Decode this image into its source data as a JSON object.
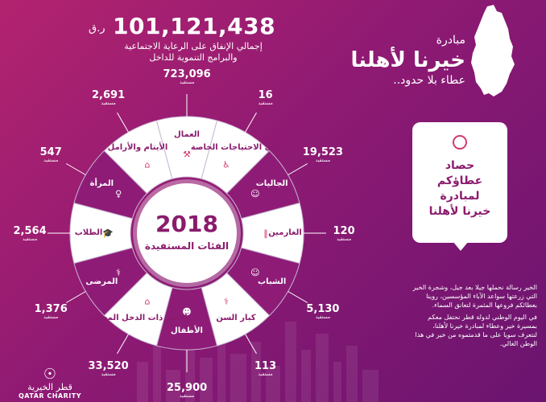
{
  "initiative": {
    "prefix": "مبادرة",
    "name": "خيرنا لأهلنا",
    "slogan": "عطاء بلا حدود.."
  },
  "total": {
    "value": "101,121,438",
    "currency": "ر.ق",
    "description_line1": "إجمالي الإنفاق على الرعاية الاجتماعية",
    "description_line2": "والبرامج التنموية للداخل"
  },
  "center": {
    "year": "2018",
    "label": "الفئات المستفيدة"
  },
  "unit_label": "مستفيد",
  "categories": [
    {
      "label": "الطلاب",
      "value": "2,564",
      "fill": "#ffffff",
      "text": "dark",
      "icon": "graduation-cap-icon"
    },
    {
      "label": "المرأة",
      "value": "547",
      "fill": "#8e1c77",
      "text": "light",
      "icon": "woman-icon"
    },
    {
      "label": "الأيتام والأرامل",
      "value": "2,691",
      "fill": "#ffffff",
      "text": "dark",
      "icon": "family-icon"
    },
    {
      "label": "العمال",
      "value": "723,096",
      "fill": "#ffffff",
      "text": "dark",
      "icon": "worker-icon"
    },
    {
      "label": "ذوي الاحتياجات الخاصة",
      "value": "16",
      "fill": "#ffffff",
      "text": "dark",
      "icon": "wheelchair-icon"
    },
    {
      "label": "الجاليات",
      "value": "19,523",
      "fill": "#8e1c77",
      "text": "light",
      "icon": "people-icon"
    },
    {
      "label": "الغارمين",
      "value": "120",
      "fill": "#ffffff",
      "text": "dark",
      "icon": "prison-bars-icon"
    },
    {
      "label": "الشباب",
      "value": "5,130",
      "fill": "#8e1c77",
      "text": "light",
      "icon": "youth-icon"
    },
    {
      "label": "كبار السن",
      "value": "113",
      "fill": "#ffffff",
      "text": "dark",
      "icon": "elderly-icon"
    },
    {
      "label": "الأطفال",
      "value": "25,900",
      "fill": "#8e1c77",
      "text": "light",
      "icon": "children-icon"
    },
    {
      "label": "الأسر ذات الدخل المحدود",
      "value": "33,520",
      "fill": "#ffffff",
      "text": "dark",
      "icon": "family-icon"
    },
    {
      "label": "المرضى",
      "value": "1,376",
      "fill": "#8e1c77",
      "text": "light",
      "icon": "hospital-bed-icon"
    }
  ],
  "card": {
    "line1": "حصاد",
    "line2": "عطاؤكم",
    "line3": "لمبادرة",
    "line4": "خيرنا لأهلنا"
  },
  "note": {
    "paragraph1": "الخير رسالة نحملها جيلا بعد جيل، وشجرة الخير التي زرعتها سواعد الآباء المؤسسين، روينا بعطائكم فروعها المثمرة لتعانق السماء.",
    "paragraph2": "في اليوم الوطني لدولة قطر نحتفل معكم بمسيرة خير وعطاء لمبادرة خيرنا لأهلنا، لنتعرف سويا على ما قدمتموه من خير في هذا الوطن الغالي."
  },
  "logo": {
    "arabic": "قطر الخيرية",
    "english": "QATAR CHARITY"
  },
  "colors": {
    "background_start": "#b3236f",
    "background_end": "#6a1470",
    "accent_dark": "#8e1c77",
    "card_text": "#8a1b6d"
  }
}
